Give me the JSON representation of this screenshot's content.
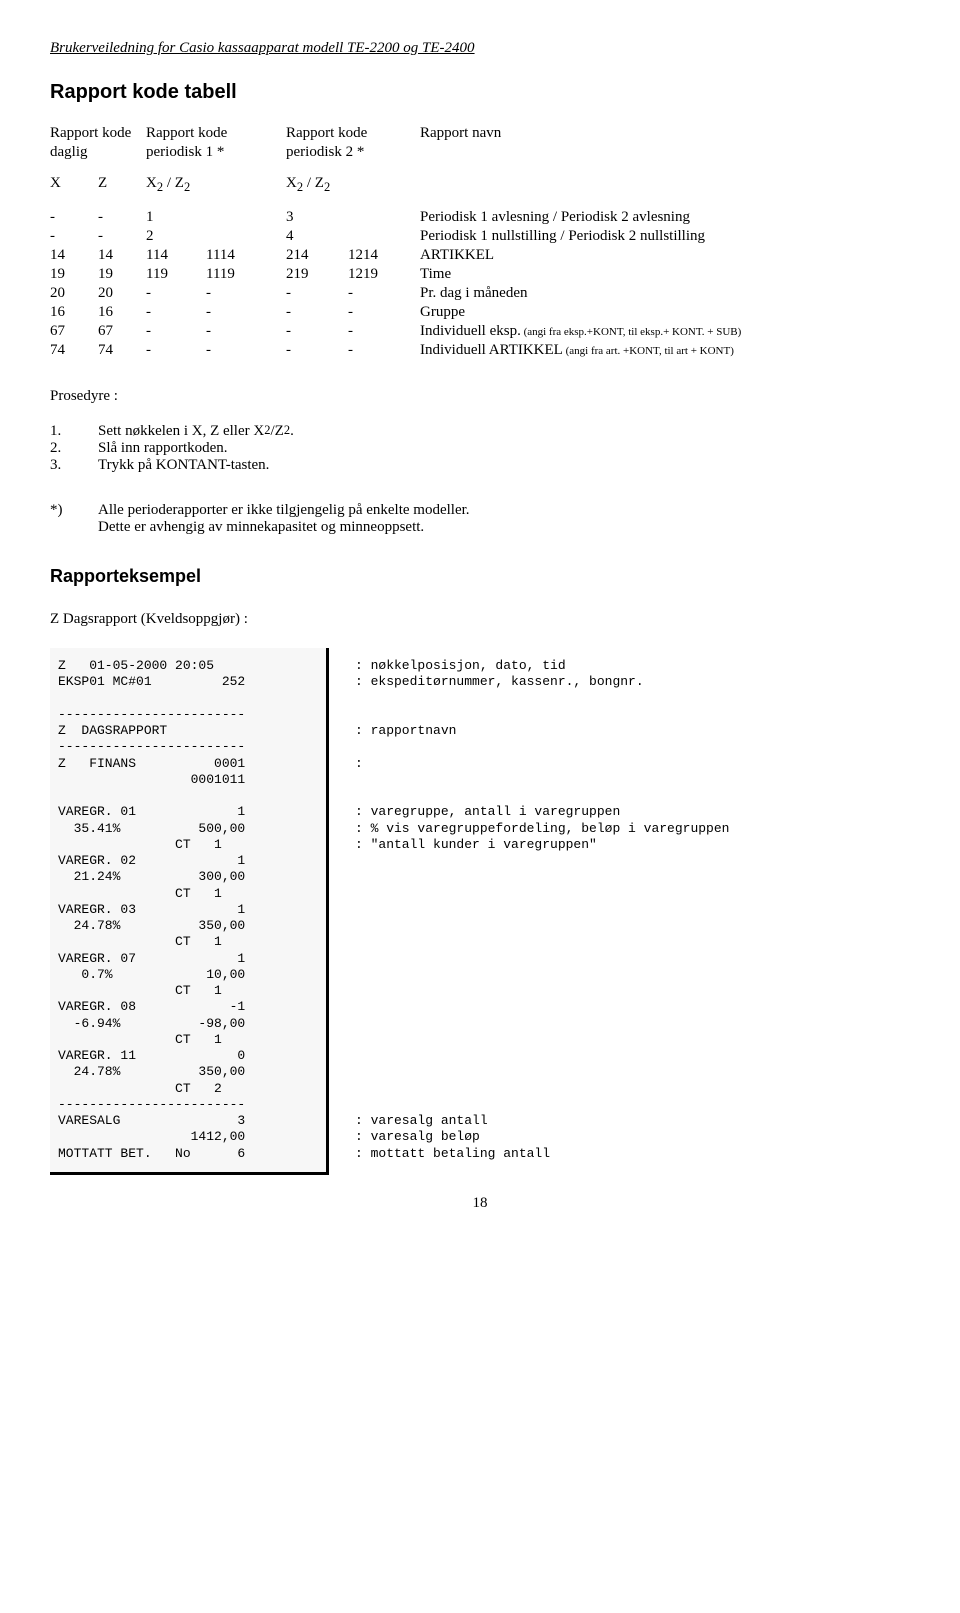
{
  "header": "Brukerveiledning for Casio kassaapparat modell  TE-2200 og TE-2400",
  "title1": "Rapport kode tabell",
  "table_header": {
    "c1a": "Rapport kode",
    "c1b": "daglig",
    "c2a": "Rapport kode",
    "c2b": "periodisk 1 *",
    "c3a": "Rapport kode",
    "c3b": "periodisk 2 *",
    "c4a": "Rapport navn",
    "c4b": ""
  },
  "row_xz": {
    "a": "X",
    "b": "Z",
    "c": "X2 / Z2",
    "d": "X2 / Z2"
  },
  "rows": [
    {
      "a": "-",
      "b": "-",
      "c": "1",
      "d": "",
      "e": "3",
      "f": "",
      "g": "Periodisk 1 avlesning / Periodisk 2 avlesning"
    },
    {
      "a": "-",
      "b": "-",
      "c": "2",
      "d": "",
      "e": "4",
      "f": "",
      "g": "Periodisk 1 nullstilling / Periodisk 2 nullstilling"
    },
    {
      "a": "14",
      "b": "14",
      "c": "114",
      "d": "1114",
      "e": "214",
      "f": "1214",
      "g": "ARTIKKEL"
    },
    {
      "a": "19",
      "b": "19",
      "c": "119",
      "d": "1119",
      "e": "219",
      "f": "1219",
      "g": "Time"
    },
    {
      "a": "20",
      "b": "20",
      "c": "-",
      "d": "-",
      "e": "-",
      "f": "-",
      "g": "Pr. dag i måneden"
    },
    {
      "a": "16",
      "b": "16",
      "c": "-",
      "d": "-",
      "e": "-",
      "f": "-",
      "g": "Gruppe"
    },
    {
      "a": "67",
      "b": "67",
      "c": "-",
      "d": "-",
      "e": "-",
      "f": "-",
      "g": "Individuell eksp.",
      "gnote": " (angi fra eksp.+KONT, til eksp.+ KONT. + SUB)"
    },
    {
      "a": "74",
      "b": "74",
      "c": "-",
      "d": "-",
      "e": "-",
      "f": "-",
      "g": "Individuell ARTIKKEL",
      "gnote": " (angi fra art. +KONT, til  art + KONT)"
    }
  ],
  "procedure_label": "Prosedyre :",
  "procedure": [
    {
      "n": "1.",
      "t": "Sett nøkkelen i X, Z eller X2/Z2."
    },
    {
      "n": "2.",
      "t": "Slå inn rapportkoden."
    },
    {
      "n": "3.",
      "t": "Trykk på KONTANT-tasten."
    }
  ],
  "note_ast": "*)",
  "note_l1": "Alle perioderapporter er ikke tilgjengelig på enkelte modeller.",
  "note_l2": "Dette er avhengig av minnekapasitet og minneoppsett.",
  "title2": "Rapporteksempel",
  "example_label": "Z  Dagsrapport  (Kveldsoppgjør) :",
  "receipt": "Z   01-05-2000 20:05\nEKSP01 MC#01         252\n\n------------------------\nZ  DAGSRAPPORT\n------------------------\nZ   FINANS          0001\n                 0001011\n\nVAREGR. 01             1\n  35.41%          500,00\n               CT   1\nVAREGR. 02             1\n  21.24%          300,00\n               CT   1\nVAREGR. 03             1\n  24.78%          350,00\n               CT   1\nVAREGR. 07             1\n   0.7%            10,00\n               CT   1\nVAREGR. 08            -1\n  -6.94%          -98,00\n               CT   1\nVAREGR. 11             0\n  24.78%          350,00\n               CT   2\n------------------------\nVARESALG               3\n                 1412,00\nMOTTATT BET.   No      6",
  "annot": ": nøkkelposisjon, dato, tid\n: ekspeditørnummer, kassenr., bongnr.\n\n\n: rapportnavn\n\n:\n\n\n: varegruppe, antall i varegruppen\n: % vis varegruppefordeling, beløp i varegruppen\n: \"antall kunder i varegruppen\"\n\n\n\n\n\n\n\n\n\n\n\n\n\n\n\n\n: varesalg antall\n: varesalg beløp\n: mottatt betaling antall",
  "page": "18"
}
